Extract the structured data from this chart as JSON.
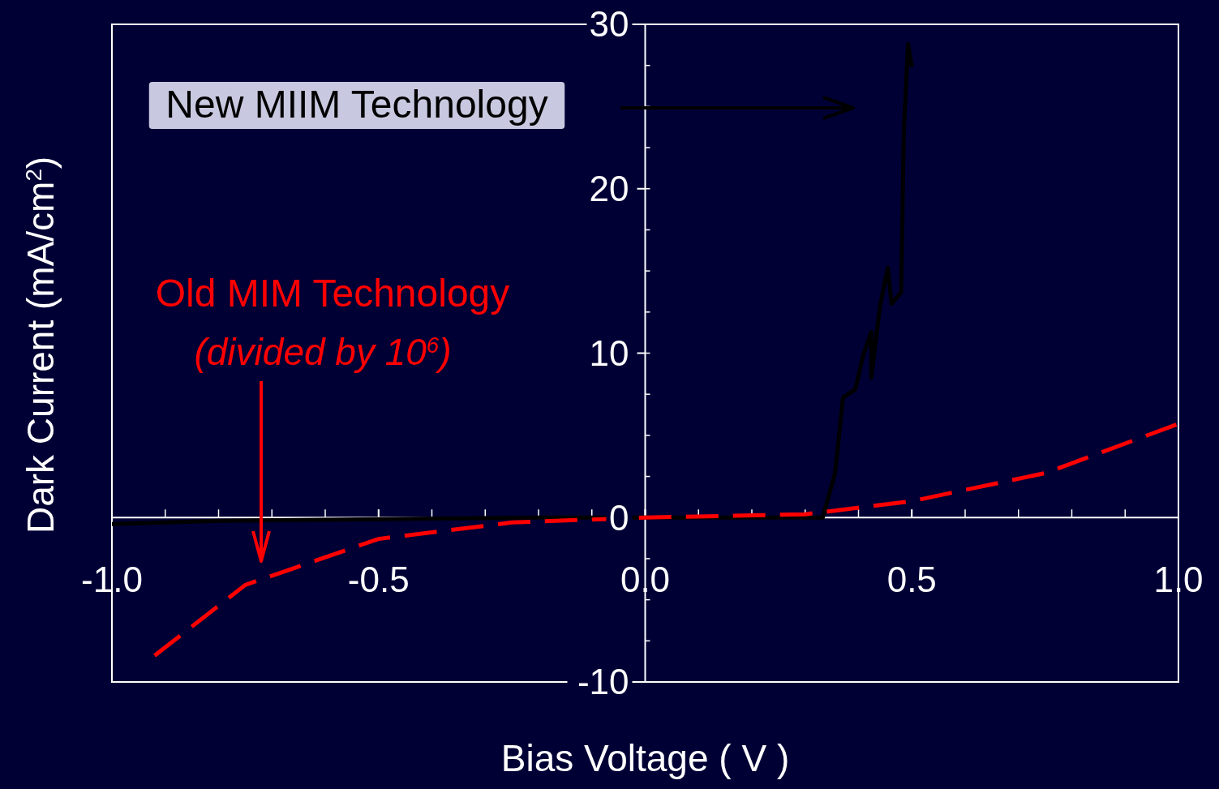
{
  "chart_data": {
    "type": "line",
    "xlabel": "Bias Voltage ( V )",
    "ylabel": "Dark Current   (mA/cm$^{2}$)",
    "xlim": [
      -1.0,
      1.0
    ],
    "xticks": [
      {
        "value": -1,
        "label": "-1.0"
      },
      {
        "value": -0.5,
        "label": "-0.5"
      },
      {
        "value": 0,
        "label": "0.0"
      },
      {
        "value": 0.5,
        "label": "0.5"
      },
      {
        "value": 1,
        "label": "1.0"
      }
    ],
    "ylim": [
      -10,
      30
    ],
    "yticks": [
      -10,
      0,
      10,
      20,
      30
    ],
    "grid": false,
    "legend": false,
    "marker": "none",
    "series": [
      {
        "name": "New MIIM Technology",
        "color": "#000000",
        "line_style": "solid",
        "x": [
          -1.0,
          -0.8,
          -0.5,
          -0.2,
          0,
          0.2,
          0.3,
          0.333,
          0.356,
          0.371,
          0.394,
          0.409,
          0.424,
          0.424,
          0.44,
          0.455,
          0.462,
          0.48,
          0.485,
          0.493,
          0.5
        ],
        "values": [
          -0.4,
          -0.2,
          -0.1,
          0,
          0,
          0,
          0,
          0,
          2.7,
          7.3,
          7.8,
          9.9,
          11.3,
          8.5,
          12.8,
          15.2,
          13,
          13.7,
          23.5,
          28.8,
          27.4
        ]
      },
      {
        "name": "Old MIM Technology",
        "color": "#ff0000",
        "line_style": "dashed",
        "x": [
          -0.92,
          -0.75,
          -0.5,
          -0.25,
          0,
          0.3,
          0.5,
          0.75,
          1.0
        ],
        "values": [
          -8.4,
          -4.1,
          -1.3,
          -0.3,
          0,
          0.2,
          1.0,
          2.7,
          5.7
        ]
      }
    ],
    "annotations": [
      "(divided by 10$^{6}$)"
    ]
  }
}
